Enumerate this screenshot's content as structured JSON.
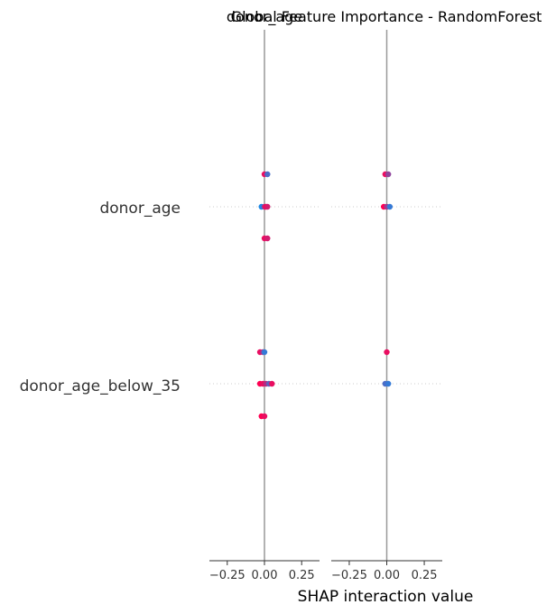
{
  "chart_data": {
    "type": "scatter",
    "title_left": "donor_age",
    "title_right": "Global Feature Importance - RandomForest",
    "features": [
      "donor_age",
      "donor_age_below_35"
    ],
    "xlabel": "SHAP interaction value",
    "xticks": [
      "−0.25",
      "0.00",
      "0.25"
    ],
    "xlim": [
      -0.37,
      0.37
    ],
    "colors": {
      "low": "#1E88E5",
      "high": "#FF0052",
      "mid": "#A63DDB",
      "axis": "#333333",
      "zero_line": "#999999",
      "grid": "#cccccc"
    },
    "panels": [
      {
        "name": "donor_age",
        "groups": [
          {
            "feature": "donor_age",
            "row": "upper",
            "points": [
              {
                "x": 0.0,
                "v": 0.9
              },
              {
                "x": 0.02,
                "v": 0.2
              }
            ]
          },
          {
            "feature": "donor_age",
            "row": "center",
            "points": [
              {
                "x": -0.02,
                "v": 0.0
              },
              {
                "x": 0.0,
                "v": 0.6
              },
              {
                "x": 0.01,
                "v": 1.0
              },
              {
                "x": 0.02,
                "v": 0.8
              }
            ]
          },
          {
            "feature": "donor_age",
            "row": "lower",
            "points": [
              {
                "x": 0.0,
                "v": 0.9
              },
              {
                "x": 0.02,
                "v": 0.8
              }
            ]
          },
          {
            "feature": "donor_age_below_35",
            "row": "upper",
            "points": [
              {
                "x": -0.03,
                "v": 0.9
              },
              {
                "x": -0.01,
                "v": 0.6
              },
              {
                "x": 0.0,
                "v": 0.1
              }
            ]
          },
          {
            "feature": "donor_age_below_35",
            "row": "center",
            "points": [
              {
                "x": -0.03,
                "v": 1.0
              },
              {
                "x": -0.01,
                "v": 0.9
              },
              {
                "x": 0.01,
                "v": 0.7
              },
              {
                "x": 0.03,
                "v": 0.3
              },
              {
                "x": 0.05,
                "v": 0.9
              }
            ]
          },
          {
            "feature": "donor_age_below_35",
            "row": "lower",
            "points": [
              {
                "x": -0.02,
                "v": 1.0
              },
              {
                "x": 0.0,
                "v": 0.9
              }
            ]
          }
        ]
      },
      {
        "name": "Global Feature Importance - RandomForest",
        "groups": [
          {
            "feature": "donor_age",
            "row": "upper",
            "points": [
              {
                "x": -0.01,
                "v": 0.9
              },
              {
                "x": 0.01,
                "v": 0.5
              }
            ]
          },
          {
            "feature": "donor_age",
            "row": "center",
            "points": [
              {
                "x": -0.02,
                "v": 1.0
              },
              {
                "x": 0.0,
                "v": 0.6
              },
              {
                "x": 0.02,
                "v": 0.1
              }
            ]
          },
          {
            "feature": "donor_age_below_35",
            "row": "upper",
            "points": [
              {
                "x": 0.0,
                "v": 0.9
              }
            ]
          },
          {
            "feature": "donor_age_below_35",
            "row": "center",
            "points": [
              {
                "x": -0.01,
                "v": 0.2
              },
              {
                "x": 0.01,
                "v": 0.1
              }
            ]
          }
        ]
      }
    ]
  }
}
